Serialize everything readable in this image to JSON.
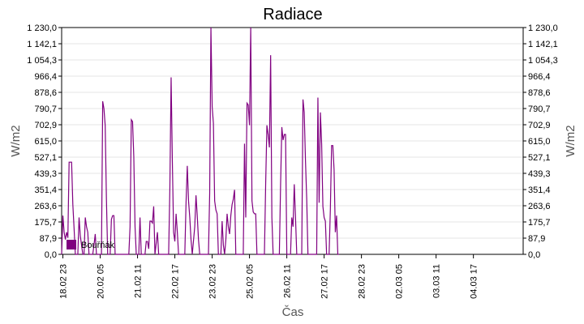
{
  "chart_data": {
    "type": "line",
    "title": "Radiace",
    "xlabel": "Čas",
    "ylabel": "W/m2",
    "ylim": [
      0,
      1230
    ],
    "y_ticks": [
      "0,0",
      "87,9",
      "175,7",
      "263,6",
      "351,4",
      "439,3",
      "527,1",
      "615,0",
      "702,9",
      "790,7",
      "878,6",
      "966,4",
      "1 054,3",
      "1 142,1",
      "1 230,0"
    ],
    "x_range_hours": [
      -1,
      370
    ],
    "x_tick_labels": [
      "18.02 23",
      "20.02 05",
      "21.02 11",
      "22.02 17",
      "23.02 23",
      "25.02 05",
      "26.02 11",
      "27.02 17",
      "28.02 23",
      "02.03 05",
      "03.03 11",
      "04.03 17"
    ],
    "x_tick_hours": [
      0,
      30,
      60,
      90,
      120,
      150,
      180,
      210,
      240,
      270,
      300,
      330
    ],
    "grid": true,
    "legend_position": "bottom-left",
    "series": [
      {
        "name": "Bouřňák",
        "color": "#800080",
        "points": [
          [
            -1,
            0
          ],
          [
            0,
            210
          ],
          [
            1,
            120
          ],
          [
            2,
            80
          ],
          [
            3,
            120
          ],
          [
            4,
            90
          ],
          [
            5,
            500
          ],
          [
            7,
            500
          ],
          [
            8,
            270
          ],
          [
            9,
            140
          ],
          [
            10,
            0
          ],
          [
            12,
            0
          ],
          [
            13,
            200
          ],
          [
            14,
            100
          ],
          [
            16,
            0
          ],
          [
            17,
            0
          ],
          [
            18,
            200
          ],
          [
            19,
            150
          ],
          [
            20,
            120
          ],
          [
            21,
            0
          ],
          [
            24,
            0
          ],
          [
            25,
            50
          ],
          [
            26,
            110
          ],
          [
            27,
            0
          ],
          [
            31,
            0
          ],
          [
            32,
            830
          ],
          [
            33,
            790
          ],
          [
            34,
            700
          ],
          [
            35,
            300
          ],
          [
            36,
            0
          ],
          [
            38,
            0
          ],
          [
            39,
            190
          ],
          [
            40,
            210
          ],
          [
            41,
            210
          ],
          [
            42,
            0
          ],
          [
            53,
            0
          ],
          [
            54,
            150
          ],
          [
            55,
            730
          ],
          [
            56,
            720
          ],
          [
            57,
            530
          ],
          [
            58,
            150
          ],
          [
            59,
            0
          ],
          [
            61,
            0
          ],
          [
            62,
            200
          ],
          [
            63,
            0
          ],
          [
            65,
            0
          ],
          [
            66,
            0
          ],
          [
            67,
            70
          ],
          [
            68,
            70
          ],
          [
            69,
            30
          ],
          [
            70,
            180
          ],
          [
            71,
            180
          ],
          [
            72,
            170
          ],
          [
            73,
            260
          ],
          [
            74,
            0
          ],
          [
            75,
            60
          ],
          [
            76,
            120
          ],
          [
            77,
            0
          ],
          [
            85,
            0
          ],
          [
            86,
            360
          ],
          [
            87,
            960
          ],
          [
            88,
            500
          ],
          [
            89,
            120
          ],
          [
            90,
            70
          ],
          [
            91,
            220
          ],
          [
            92,
            120
          ],
          [
            93,
            0
          ],
          [
            98,
            0
          ],
          [
            99,
            280
          ],
          [
            100,
            480
          ],
          [
            101,
            290
          ],
          [
            102,
            200
          ],
          [
            103,
            80
          ],
          [
            104,
            0
          ],
          [
            106,
            150
          ],
          [
            107,
            320
          ],
          [
            108,
            210
          ],
          [
            109,
            80
          ],
          [
            110,
            0
          ],
          [
            117,
            0
          ],
          [
            118,
            330
          ],
          [
            119,
            1230
          ],
          [
            120,
            800
          ],
          [
            121,
            710
          ],
          [
            122,
            290
          ],
          [
            123,
            240
          ],
          [
            124,
            220
          ],
          [
            125,
            0
          ],
          [
            127,
            0
          ],
          [
            128,
            180
          ],
          [
            129,
            50
          ],
          [
            130,
            0
          ],
          [
            131,
            80
          ],
          [
            132,
            220
          ],
          [
            133,
            150
          ],
          [
            134,
            110
          ],
          [
            135,
            210
          ],
          [
            136,
            270
          ],
          [
            137,
            300
          ],
          [
            138,
            350
          ],
          [
            139,
            0
          ],
          [
            145,
            0
          ],
          [
            146,
            600
          ],
          [
            147,
            200
          ],
          [
            148,
            820
          ],
          [
            149,
            810
          ],
          [
            150,
            700
          ],
          [
            151,
            1230
          ],
          [
            152,
            290
          ],
          [
            153,
            230
          ],
          [
            154,
            220
          ],
          [
            155,
            220
          ],
          [
            156,
            0
          ],
          [
            162,
            0
          ],
          [
            163,
            380
          ],
          [
            164,
            700
          ],
          [
            165,
            650
          ],
          [
            166,
            580
          ],
          [
            167,
            1080
          ],
          [
            168,
            200
          ],
          [
            169,
            0
          ],
          [
            174,
            0
          ],
          [
            175,
            380
          ],
          [
            176,
            690
          ],
          [
            177,
            620
          ],
          [
            178,
            650
          ],
          [
            179,
            650
          ],
          [
            180,
            0
          ],
          [
            183,
            0
          ],
          [
            184,
            200
          ],
          [
            185,
            150
          ],
          [
            186,
            380
          ],
          [
            187,
            200
          ],
          [
            188,
            0
          ],
          [
            192,
            0
          ],
          [
            193,
            840
          ],
          [
            194,
            770
          ],
          [
            195,
            510
          ],
          [
            196,
            300
          ],
          [
            197,
            0
          ],
          [
            204,
            0
          ],
          [
            205,
            850
          ],
          [
            206,
            280
          ],
          [
            207,
            770
          ],
          [
            208,
            600
          ],
          [
            209,
            260
          ],
          [
            210,
            200
          ],
          [
            211,
            180
          ],
          [
            212,
            0
          ],
          [
            214,
            0
          ],
          [
            215,
            240
          ],
          [
            216,
            590
          ],
          [
            217,
            590
          ],
          [
            218,
            460
          ],
          [
            219,
            120
          ],
          [
            220,
            210
          ],
          [
            221,
            0
          ],
          [
            222,
            0
          ]
        ]
      }
    ]
  }
}
